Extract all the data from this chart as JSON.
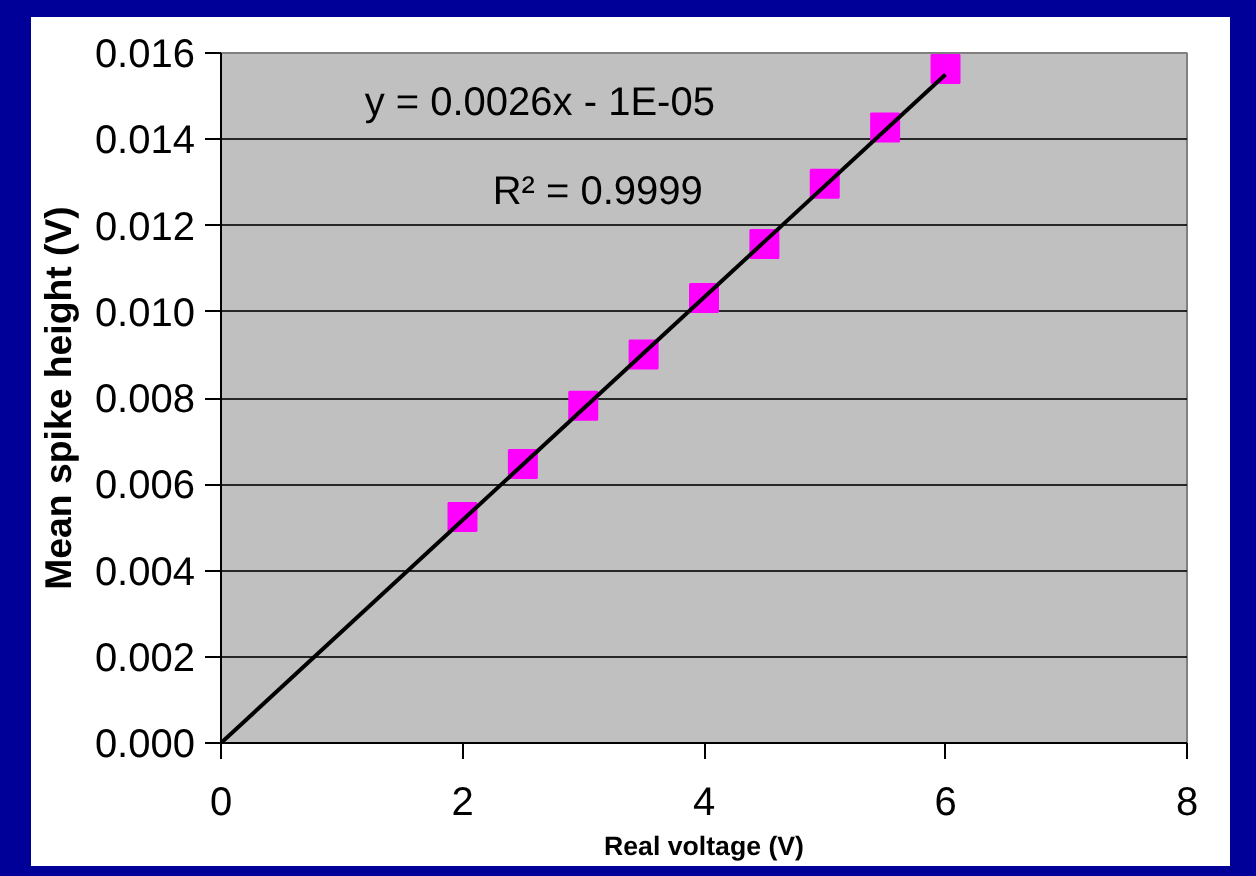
{
  "chart_data": {
    "type": "scatter",
    "xlabel": "Real voltage (V)",
    "ylabel": "Mean spike height (V)",
    "x": [
      2,
      2.5,
      3,
      3.5,
      4,
      4.5,
      5,
      5.5,
      6
    ],
    "series": [
      {
        "color": "#ff00ff",
        "marker": "square",
        "values": [
          0.00524,
          0.00647,
          0.00782,
          0.00901,
          0.01032,
          0.01157,
          0.01297,
          0.01427,
          0.01563
        ]
      },
      {
        "type": "line",
        "color": "#000000",
        "marker": "none",
        "x": [
          0,
          6
        ],
        "values": [
          0.0,
          0.0155
        ]
      }
    ],
    "annotations": [
      "y = 0.0026x - 1E-05",
      "R² = 0.9999"
    ],
    "xlim": [
      0,
      8
    ],
    "xticks": [
      0,
      2,
      4,
      6,
      8
    ],
    "ylim": [
      0,
      0.016
    ],
    "yticks": [
      {
        "value": 0,
        "label": "0.000"
      },
      {
        "value": 0.002,
        "label": "0.002"
      },
      {
        "value": 0.004,
        "label": "0.004"
      },
      {
        "value": 0.006,
        "label": "0.006"
      },
      {
        "value": 0.008,
        "label": "0.008"
      },
      {
        "value": 0.01,
        "label": "0.010"
      },
      {
        "value": 0.012,
        "label": "0.012"
      },
      {
        "value": 0.014,
        "label": "0.014"
      },
      {
        "value": 0.016,
        "label": "0.016"
      }
    ],
    "grid": "y"
  }
}
